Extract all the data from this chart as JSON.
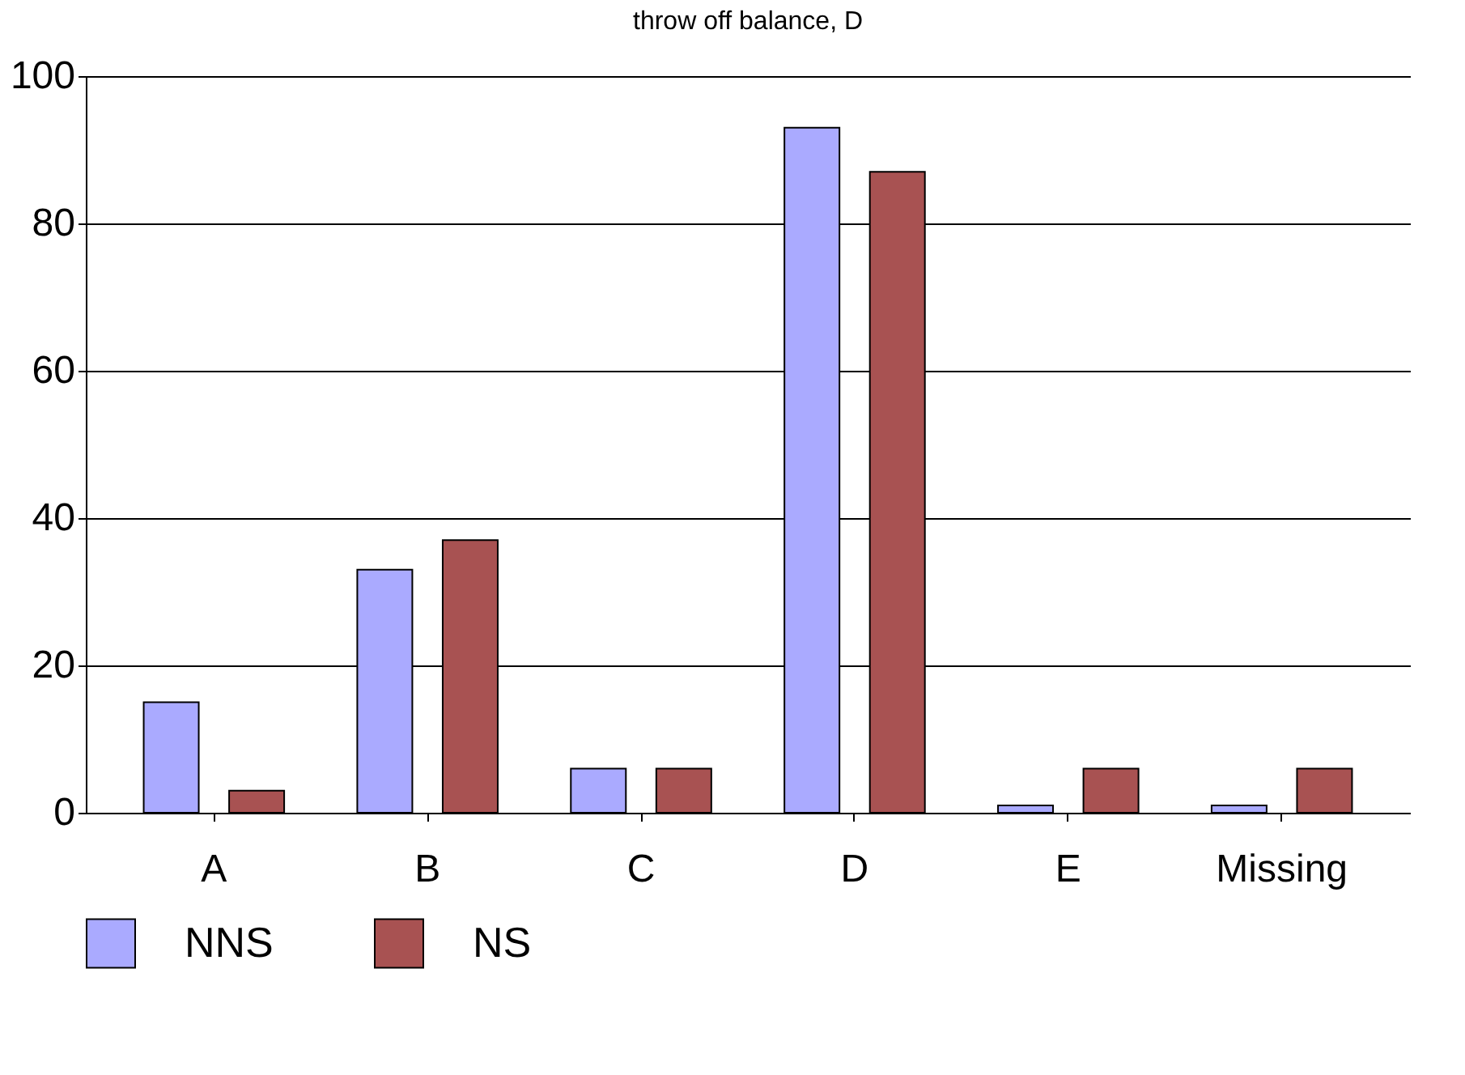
{
  "chart_data": {
    "type": "bar",
    "title": "throw off balance, D",
    "categories": [
      "A",
      "B",
      "C",
      "D",
      "E",
      "Missing"
    ],
    "series": [
      {
        "name": "NNS",
        "color": "#aaaaff",
        "values": [
          15,
          33,
          6,
          93,
          1,
          1
        ]
      },
      {
        "name": "NS",
        "color": "#a85252",
        "values": [
          3,
          37,
          6,
          87,
          6,
          6
        ]
      }
    ],
    "ylim": [
      0,
      100
    ],
    "yticks": [
      0,
      20,
      40,
      60,
      80,
      100
    ],
    "grid": "y",
    "legend": "bottom"
  }
}
